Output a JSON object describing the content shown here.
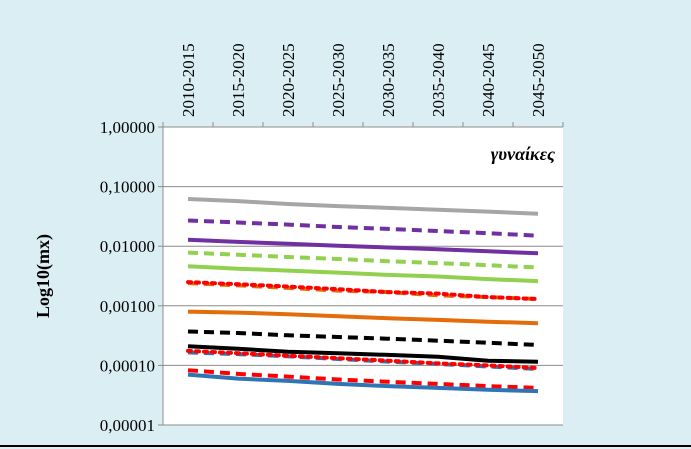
{
  "chart_data": {
    "type": "line",
    "x": [
      "2010-2015",
      "2015-2020",
      "2020-2025",
      "2025-2030",
      "2030-2035",
      "2035-2040",
      "2040-2045",
      "2045-2050"
    ],
    "ylabel": "Log10(mx)",
    "yscale": "log",
    "ylim": [
      1e-05,
      1
    ],
    "yticks": [
      1,
      0.1,
      0.01,
      0.001,
      0.0001,
      1e-05
    ],
    "ytick_labels": [
      "1,00000",
      "0,10000",
      "0,01000",
      "0,00100",
      "0,00010",
      "0,00001"
    ],
    "annotation": "γυναίκες",
    "grid": true,
    "legend": "none",
    "series": [
      {
        "color": "#a6a6a6",
        "style": "solid",
        "values": [
          0.062,
          0.057,
          0.051,
          0.047,
          0.044,
          0.041,
          0.038,
          0.035
        ]
      },
      {
        "color": "#7030a0",
        "style": "dashed",
        "values": [
          0.027,
          0.025,
          0.023,
          0.021,
          0.0195,
          0.018,
          0.0165,
          0.015
        ]
      },
      {
        "color": "#7030a0",
        "style": "solid",
        "values": [
          0.0128,
          0.0118,
          0.011,
          0.0102,
          0.0095,
          0.0089,
          0.0082,
          0.0076
        ]
      },
      {
        "color": "#92d050",
        "style": "dashed",
        "values": [
          0.0078,
          0.0072,
          0.0066,
          0.0061,
          0.0056,
          0.0052,
          0.0048,
          0.0044
        ]
      },
      {
        "color": "#92d050",
        "style": "solid",
        "values": [
          0.0046,
          0.0042,
          0.0039,
          0.0036,
          0.0033,
          0.0031,
          0.0028,
          0.0026
        ]
      },
      {
        "color": "#e46c0a",
        "style": "dashed",
        "values": [
          0.0024,
          0.0022,
          0.002,
          0.0018,
          0.0017,
          0.0015,
          0.0014,
          0.0013
        ]
      },
      {
        "color": "#ff0000",
        "style": "dotted",
        "values": [
          0.0025,
          0.0023,
          0.0021,
          0.0019,
          0.0017,
          0.0016,
          0.0014,
          0.0013
        ]
      },
      {
        "color": "#e46c0a",
        "style": "solid",
        "values": [
          0.0008,
          0.00077,
          0.00072,
          0.00067,
          0.00062,
          0.00058,
          0.00054,
          0.00051
        ]
      },
      {
        "color": "#000000",
        "style": "dashed",
        "values": [
          0.00037,
          0.00035,
          0.00032,
          0.0003,
          0.00028,
          0.00026,
          0.00024,
          0.00022
        ]
      },
      {
        "color": "#000000",
        "style": "solid",
        "values": [
          0.00021,
          0.00019,
          0.00017,
          0.00016,
          0.00015,
          0.00014,
          0.00012,
          0.000115
        ]
      },
      {
        "color": "#2e75b6",
        "style": "dashed",
        "values": [
          0.000165,
          0.000155,
          0.000142,
          0.000128,
          0.000116,
          0.000106,
          9.6e-05,
          8.7e-05
        ]
      },
      {
        "color": "#ff0000",
        "style": "dotted",
        "values": [
          0.000175,
          0.00016,
          0.000145,
          0.000132,
          0.00012,
          0.000108,
          0.0001,
          9e-05
        ]
      },
      {
        "color": "#ff0000",
        "style": "dashed",
        "values": [
          8.3e-05,
          7.2e-05,
          6.5e-05,
          5.8e-05,
          5.3e-05,
          4.9e-05,
          4.5e-05,
          4.2e-05
        ]
      },
      {
        "color": "#2e75b6",
        "style": "solid",
        "values": [
          7e-05,
          6e-05,
          5.5e-05,
          4.9e-05,
          4.5e-05,
          4.2e-05,
          3.9e-05,
          3.7e-05
        ]
      }
    ]
  }
}
